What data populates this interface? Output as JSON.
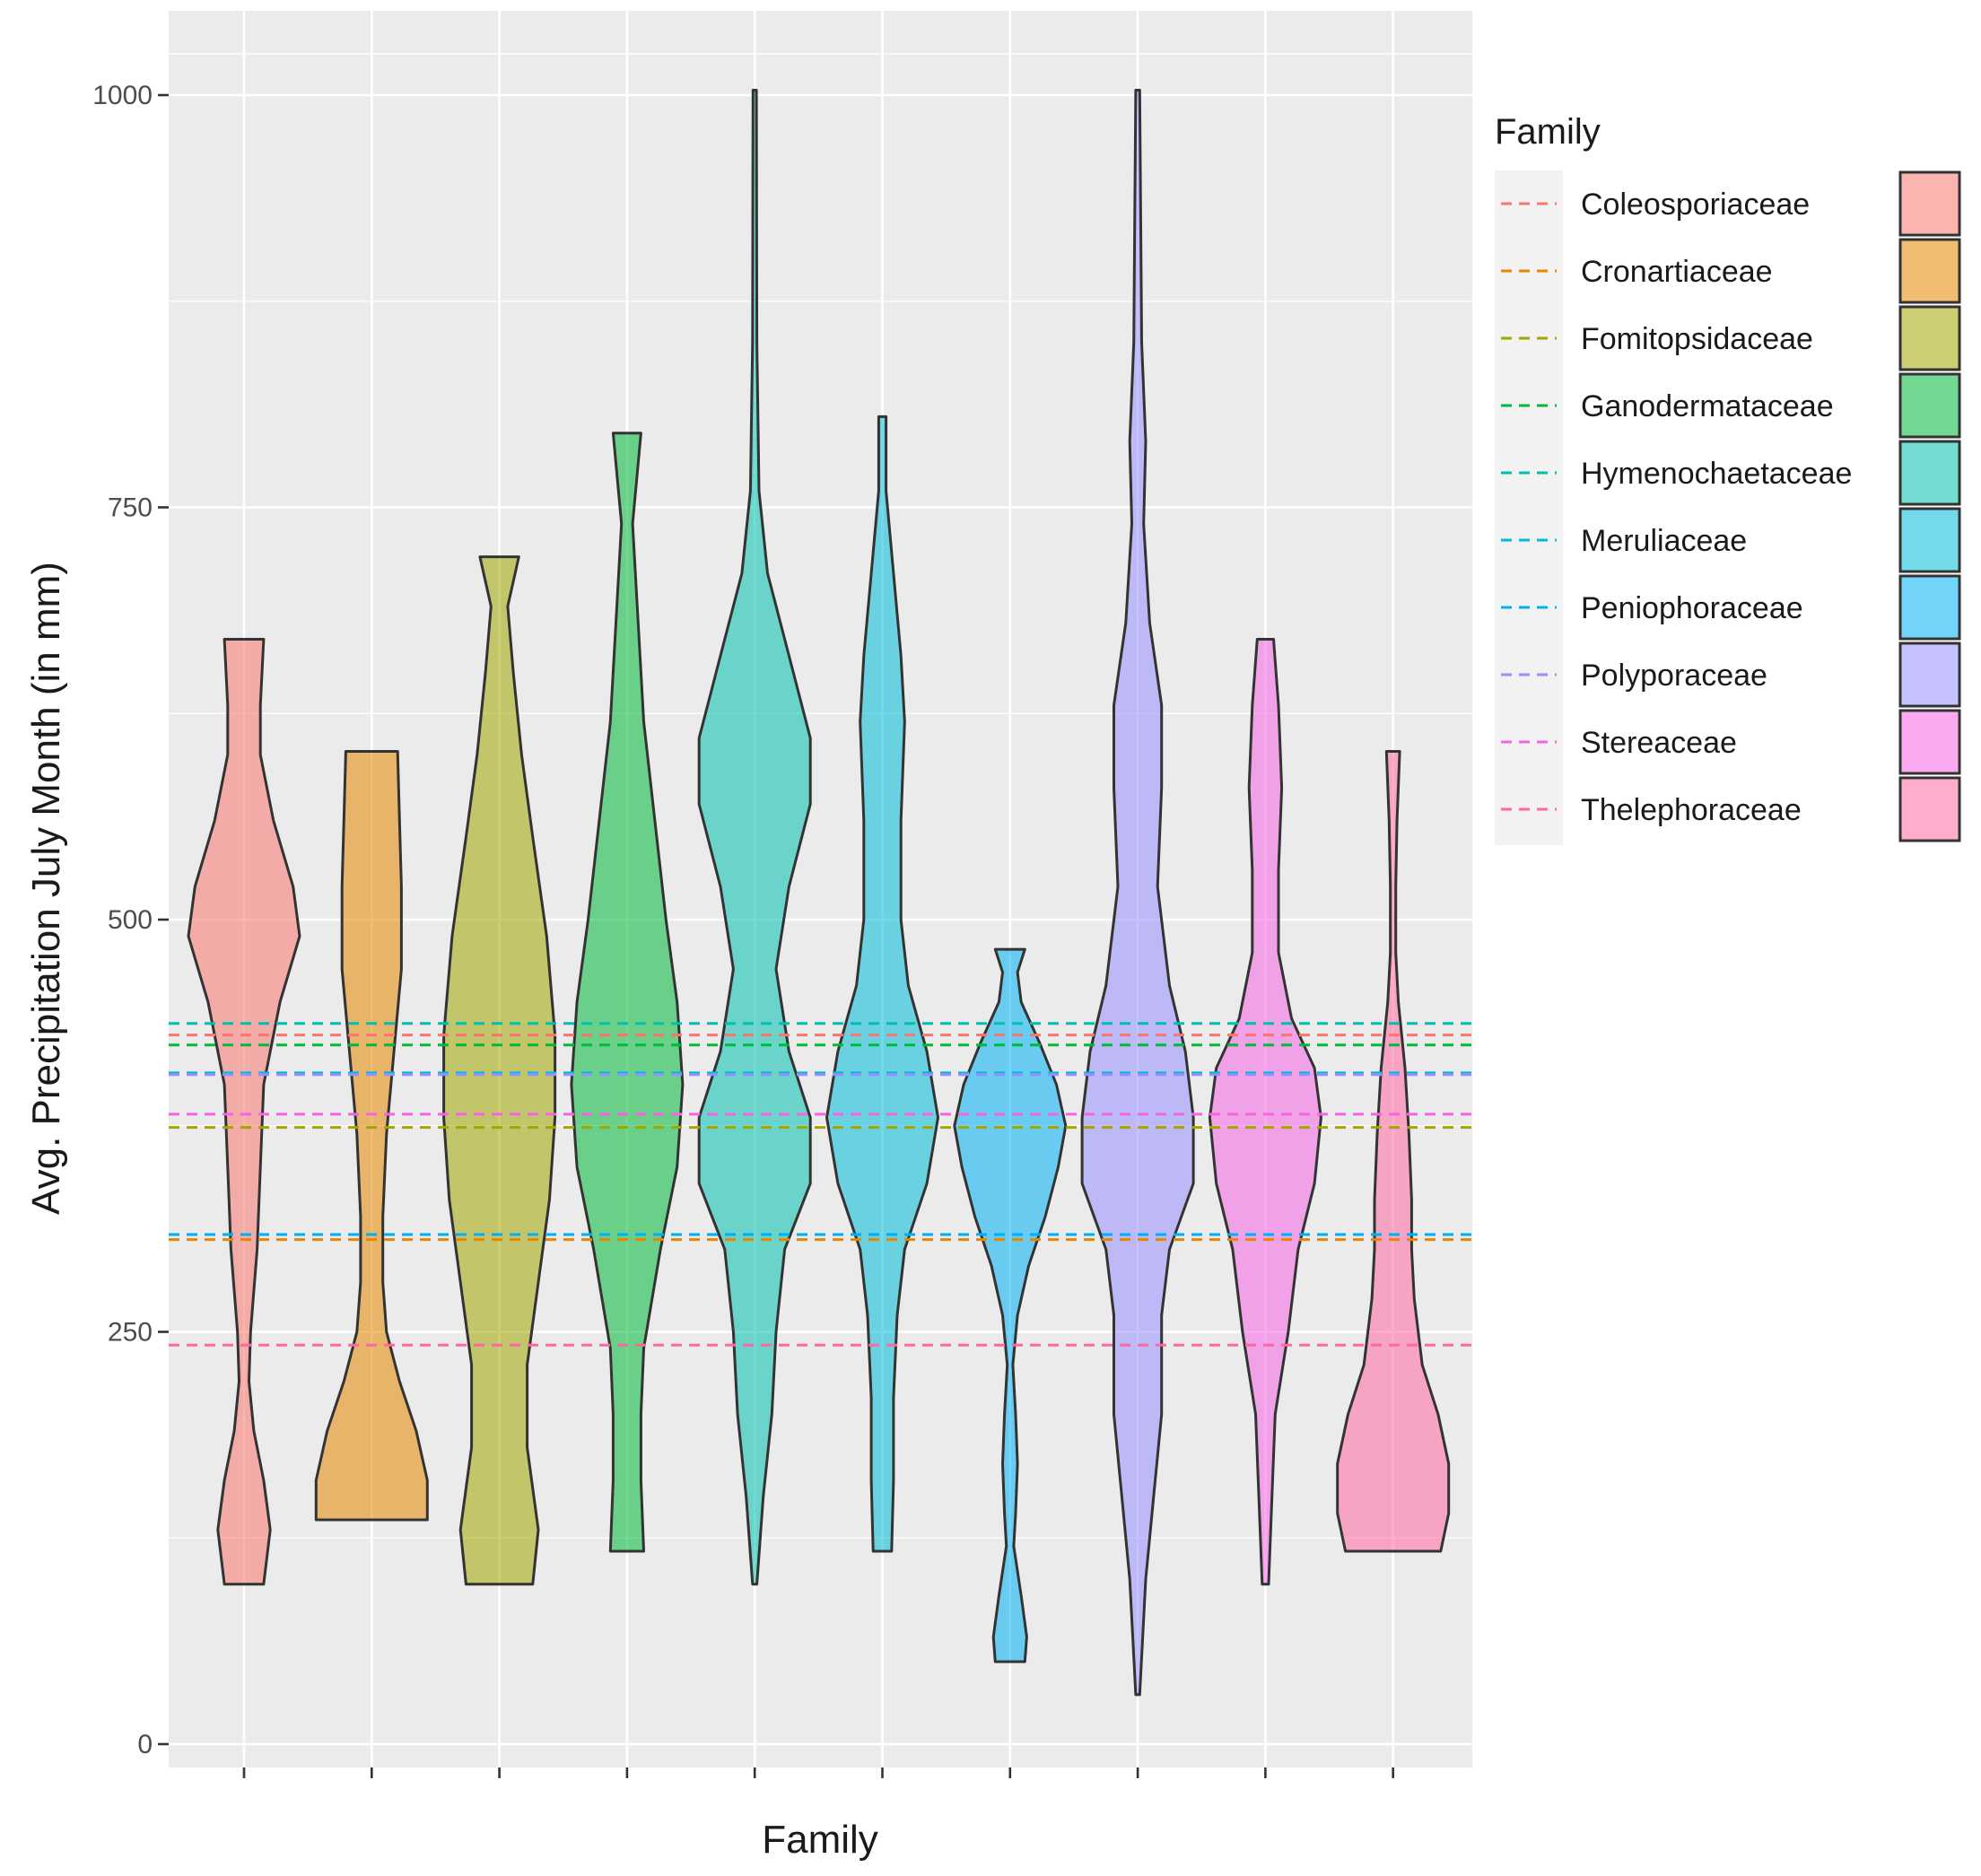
{
  "chart_data": {
    "type": "violin",
    "xlabel": "Family",
    "ylabel": "Avg. Precipitation July Month (in mm)",
    "ylim": [
      -18,
      1050
    ],
    "yticks": [
      0,
      250,
      500,
      750,
      1000
    ],
    "grid": true,
    "legend": {
      "title": "Family",
      "position": "right",
      "entries": [
        "Coleosporiaceae",
        "Cronartiaceae",
        "Fomitopsidaceae",
        "Ganodermataceae",
        "Hymenochaetaceae",
        "Meruliaceae",
        "Peniophoraceae",
        "Polyporaceae",
        "Stereaceae",
        "Thelephoraceae"
      ]
    },
    "colors": [
      "#F8766D",
      "#E58700",
      "#A3A500",
      "#00BA38",
      "#00C0AF",
      "#00BCD8",
      "#00B0F6",
      "#9590FF",
      "#F564E3",
      "#FF67A4"
    ],
    "means": [
      430,
      306,
      374,
      424,
      437,
      407,
      309,
      406,
      382,
      242
    ],
    "series": [
      {
        "name": "Coleosporiaceae",
        "min": 97,
        "max": 670,
        "density": [
          [
            97,
            0.12
          ],
          [
            130,
            0.16
          ],
          [
            160,
            0.12
          ],
          [
            190,
            0.06
          ],
          [
            220,
            0.03
          ],
          [
            250,
            0.04
          ],
          [
            300,
            0.08
          ],
          [
            350,
            0.1
          ],
          [
            400,
            0.12
          ],
          [
            450,
            0.22
          ],
          [
            490,
            0.34
          ],
          [
            520,
            0.3
          ],
          [
            560,
            0.18
          ],
          [
            600,
            0.1
          ],
          [
            630,
            0.1
          ],
          [
            670,
            0.12
          ]
        ]
      },
      {
        "name": "Cronartiaceae",
        "min": 136,
        "max": 602,
        "density": [
          [
            136,
            0.3
          ],
          [
            160,
            0.3
          ],
          [
            190,
            0.24
          ],
          [
            220,
            0.15
          ],
          [
            250,
            0.08
          ],
          [
            280,
            0.06
          ],
          [
            320,
            0.06
          ],
          [
            370,
            0.08
          ],
          [
            420,
            0.12
          ],
          [
            470,
            0.16
          ],
          [
            520,
            0.16
          ],
          [
            560,
            0.15
          ],
          [
            602,
            0.14
          ]
        ]
      },
      {
        "name": "Fomitopsidaceae",
        "min": 97,
        "max": 720,
        "density": [
          [
            97,
            0.12
          ],
          [
            130,
            0.14
          ],
          [
            180,
            0.1
          ],
          [
            230,
            0.1
          ],
          [
            280,
            0.14
          ],
          [
            330,
            0.18
          ],
          [
            380,
            0.2
          ],
          [
            430,
            0.2
          ],
          [
            490,
            0.17
          ],
          [
            550,
            0.12
          ],
          [
            600,
            0.08
          ],
          [
            650,
            0.05
          ],
          [
            690,
            0.03
          ],
          [
            720,
            0.07
          ]
        ]
      },
      {
        "name": "Ganodermataceae",
        "min": 117,
        "max": 795,
        "density": [
          [
            117,
            0.06
          ],
          [
            160,
            0.05
          ],
          [
            200,
            0.05
          ],
          [
            240,
            0.06
          ],
          [
            300,
            0.12
          ],
          [
            350,
            0.18
          ],
          [
            400,
            0.2
          ],
          [
            450,
            0.18
          ],
          [
            500,
            0.14
          ],
          [
            560,
            0.1
          ],
          [
            620,
            0.06
          ],
          [
            680,
            0.04
          ],
          [
            740,
            0.02
          ],
          [
            795,
            0.05
          ]
        ]
      },
      {
        "name": "Hymenochaetaceae",
        "min": 97,
        "max": 1003,
        "density": [
          [
            97,
            0.01
          ],
          [
            150,
            0.04
          ],
          [
            200,
            0.08
          ],
          [
            250,
            0.1
          ],
          [
            300,
            0.14
          ],
          [
            340,
            0.26
          ],
          [
            380,
            0.26
          ],
          [
            420,
            0.16
          ],
          [
            470,
            0.1
          ],
          [
            520,
            0.16
          ],
          [
            570,
            0.26
          ],
          [
            610,
            0.26
          ],
          [
            660,
            0.16
          ],
          [
            710,
            0.06
          ],
          [
            760,
            0.02
          ],
          [
            850,
            0.01
          ],
          [
            1003,
            0.008
          ]
        ]
      },
      {
        "name": "Meruliaceae",
        "min": 117,
        "max": 805,
        "density": [
          [
            117,
            0.05
          ],
          [
            160,
            0.06
          ],
          [
            210,
            0.06
          ],
          [
            260,
            0.08
          ],
          [
            300,
            0.12
          ],
          [
            340,
            0.24
          ],
          [
            380,
            0.3
          ],
          [
            420,
            0.24
          ],
          [
            460,
            0.14
          ],
          [
            500,
            0.1
          ],
          [
            560,
            0.1
          ],
          [
            620,
            0.12
          ],
          [
            660,
            0.1
          ],
          [
            710,
            0.06
          ],
          [
            760,
            0.02
          ],
          [
            805,
            0.02
          ]
        ]
      },
      {
        "name": "Peniophoraceae",
        "min": 50,
        "max": 482,
        "density": [
          [
            50,
            0.16
          ],
          [
            65,
            0.18
          ],
          [
            90,
            0.12
          ],
          [
            120,
            0.04
          ],
          [
            140,
            0.06
          ],
          [
            170,
            0.08
          ],
          [
            200,
            0.06
          ],
          [
            230,
            0.03
          ],
          [
            260,
            0.08
          ],
          [
            290,
            0.2
          ],
          [
            320,
            0.38
          ],
          [
            350,
            0.52
          ],
          [
            375,
            0.6
          ],
          [
            400,
            0.5
          ],
          [
            425,
            0.32
          ],
          [
            450,
            0.12
          ],
          [
            468,
            0.08
          ],
          [
            482,
            0.16
          ]
        ]
      },
      {
        "name": "Polyporaceae",
        "min": 30,
        "max": 1003,
        "density": [
          [
            30,
            0.01
          ],
          [
            100,
            0.04
          ],
          [
            150,
            0.08
          ],
          [
            200,
            0.12
          ],
          [
            260,
            0.12
          ],
          [
            300,
            0.16
          ],
          [
            340,
            0.28
          ],
          [
            380,
            0.28
          ],
          [
            420,
            0.24
          ],
          [
            460,
            0.16
          ],
          [
            520,
            0.1
          ],
          [
            580,
            0.12
          ],
          [
            630,
            0.12
          ],
          [
            680,
            0.06
          ],
          [
            740,
            0.03
          ],
          [
            790,
            0.04
          ],
          [
            850,
            0.02
          ],
          [
            1003,
            0.01
          ]
        ]
      },
      {
        "name": "Stereaceae",
        "min": 97,
        "max": 670,
        "density": [
          [
            97,
            0.02
          ],
          [
            150,
            0.04
          ],
          [
            200,
            0.06
          ],
          [
            250,
            0.14
          ],
          [
            300,
            0.2
          ],
          [
            340,
            0.3
          ],
          [
            380,
            0.34
          ],
          [
            410,
            0.3
          ],
          [
            440,
            0.16
          ],
          [
            480,
            0.08
          ],
          [
            530,
            0.08
          ],
          [
            580,
            0.1
          ],
          [
            630,
            0.08
          ],
          [
            670,
            0.05
          ]
        ]
      },
      {
        "name": "Thelephoraceae",
        "min": 117,
        "max": 602,
        "density": [
          [
            117,
            0.36
          ],
          [
            140,
            0.42
          ],
          [
            170,
            0.42
          ],
          [
            200,
            0.34
          ],
          [
            230,
            0.22
          ],
          [
            270,
            0.16
          ],
          [
            300,
            0.14
          ],
          [
            330,
            0.14
          ],
          [
            370,
            0.12
          ],
          [
            410,
            0.09
          ],
          [
            450,
            0.04
          ],
          [
            480,
            0.02
          ],
          [
            520,
            0.02
          ],
          [
            560,
            0.03
          ],
          [
            602,
            0.05
          ]
        ]
      }
    ]
  }
}
